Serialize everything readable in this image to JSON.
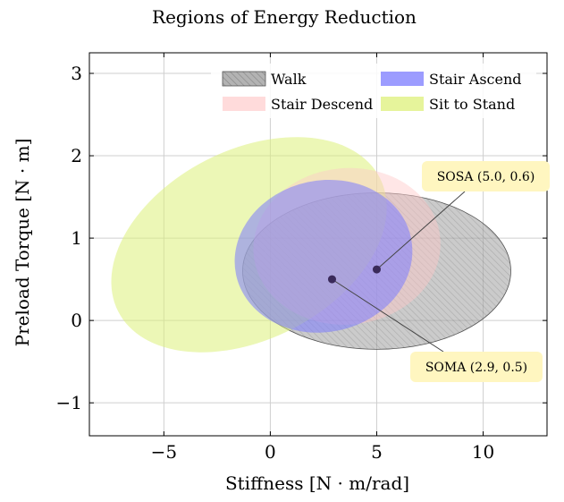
{
  "chart_data": {
    "type": "scatter",
    "title": "Regions of Energy Reduction",
    "xlabel": "Stiffness [N · m/rad]",
    "ylabel": "Preload Torque [N · m]",
    "xlim": [
      -8.5,
      13
    ],
    "ylim": [
      -1.4,
      3.25
    ],
    "x_ticks": [
      -5,
      0,
      5,
      10
    ],
    "y_ticks": [
      -1,
      0,
      1,
      2,
      3
    ],
    "x_tick_labels": [
      "−5",
      "0",
      "5",
      "10"
    ],
    "y_tick_labels": [
      "−1",
      "0",
      "1",
      "2",
      "3"
    ],
    "grid": true,
    "legend_position": "top-right",
    "regions": [
      {
        "name": "Walk",
        "center": [
          5.0,
          0.6
        ],
        "semi_axes": [
          6.3,
          0.95
        ],
        "angle_deg": 0,
        "color": "#808080",
        "opacity": 0.55,
        "hatched": true
      },
      {
        "name": "Stair Ascend",
        "center": [
          2.5,
          0.78
        ],
        "semi_axes": [
          4.2,
          0.92
        ],
        "angle_deg": -12,
        "color": "#7b7bff",
        "opacity": 0.55,
        "hatched": false
      },
      {
        "name": "Stair Descend",
        "center": [
          3.6,
          0.9
        ],
        "semi_axes": [
          4.4,
          0.95
        ],
        "angle_deg": -5,
        "color": "#ffc8c8",
        "opacity": 0.45,
        "hatched": false
      },
      {
        "name": "Sit to Stand",
        "center": [
          -1.0,
          0.92
        ],
        "semi_axes": [
          6.9,
          1.15
        ],
        "angle_deg": -27,
        "color": "#ddf07a",
        "opacity": 0.55,
        "hatched": false
      }
    ],
    "points": [
      {
        "label": "SOSA (5.0, 0.6)",
        "x": 5.0,
        "y": 0.62
      },
      {
        "label": "SOMA (2.9, 0.5)",
        "x": 2.9,
        "y": 0.5
      }
    ],
    "point_color": "#3a2a5a",
    "annotation_box_color": "#fff6c0"
  }
}
